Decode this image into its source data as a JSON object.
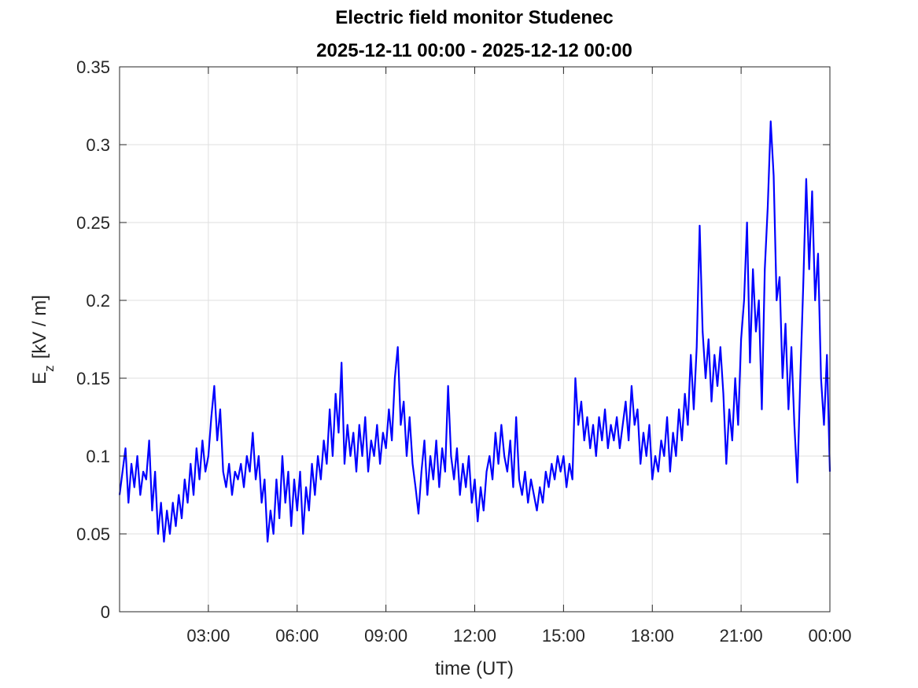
{
  "chart_data": {
    "type": "line",
    "title": "Electric field monitor Studenec",
    "subtitle": "2025-12-11 00:00 - 2025-12-12 00:00",
    "xlabel": "time (UT)",
    "ylabel": "E",
    "ylabel_subscript": "z",
    "ylabel_unit": "[kV / m]",
    "grid": true,
    "xlim": [
      0,
      24
    ],
    "xticks": [
      {
        "value": 3,
        "label": "03:00"
      },
      {
        "value": 6,
        "label": "06:00"
      },
      {
        "value": 9,
        "label": "09:00"
      },
      {
        "value": 12,
        "label": "12:00"
      },
      {
        "value": 15,
        "label": "15:00"
      },
      {
        "value": 18,
        "label": "18:00"
      },
      {
        "value": 21,
        "label": "21:00"
      },
      {
        "value": 24,
        "label": "00:00"
      }
    ],
    "ylim": [
      0,
      0.35
    ],
    "yticks": [
      0,
      0.05,
      0.1,
      0.15,
      0.2,
      0.25,
      0.3,
      0.35
    ],
    "x": [
      0,
      0.1,
      0.2,
      0.3,
      0.4,
      0.5,
      0.6,
      0.7,
      0.8,
      0.9,
      1,
      1.1,
      1.2,
      1.3,
      1.4,
      1.5,
      1.6,
      1.7,
      1.8,
      1.9,
      2,
      2.1,
      2.2,
      2.3,
      2.4,
      2.5,
      2.6,
      2.7,
      2.8,
      2.9,
      3,
      3.1,
      3.2,
      3.3,
      3.4,
      3.5,
      3.6,
      3.7,
      3.8,
      3.9,
      4,
      4.1,
      4.2,
      4.3,
      4.4,
      4.5,
      4.6,
      4.7,
      4.8,
      4.9,
      5,
      5.1,
      5.2,
      5.3,
      5.4,
      5.5,
      5.6,
      5.7,
      5.8,
      5.9,
      6,
      6.1,
      6.2,
      6.3,
      6.4,
      6.5,
      6.6,
      6.7,
      6.8,
      6.9,
      7,
      7.1,
      7.2,
      7.3,
      7.4,
      7.5,
      7.6,
      7.7,
      7.8,
      7.9,
      8,
      8.1,
      8.2,
      8.3,
      8.4,
      8.5,
      8.6,
      8.7,
      8.8,
      8.9,
      9,
      9.1,
      9.2,
      9.3,
      9.4,
      9.5,
      9.6,
      9.7,
      9.8,
      9.9,
      10,
      10.1,
      10.2,
      10.3,
      10.4,
      10.5,
      10.6,
      10.7,
      10.8,
      10.9,
      11,
      11.1,
      11.2,
      11.3,
      11.4,
      11.5,
      11.6,
      11.7,
      11.8,
      11.9,
      12,
      12.1,
      12.2,
      12.3,
      12.4,
      12.5,
      12.6,
      12.7,
      12.8,
      12.9,
      13,
      13.1,
      13.2,
      13.3,
      13.4,
      13.5,
      13.6,
      13.7,
      13.8,
      13.9,
      14,
      14.1,
      14.2,
      14.3,
      14.4,
      14.5,
      14.6,
      14.7,
      14.8,
      14.9,
      15,
      15.1,
      15.2,
      15.3,
      15.4,
      15.5,
      15.6,
      15.7,
      15.8,
      15.9,
      16,
      16.1,
      16.2,
      16.3,
      16.4,
      16.5,
      16.6,
      16.7,
      16.8,
      16.9,
      17,
      17.1,
      17.2,
      17.3,
      17.4,
      17.5,
      17.6,
      17.7,
      17.8,
      17.9,
      18,
      18.1,
      18.2,
      18.3,
      18.4,
      18.5,
      18.6,
      18.7,
      18.8,
      18.9,
      19,
      19.1,
      19.2,
      19.3,
      19.4,
      19.5,
      19.6,
      19.7,
      19.8,
      19.9,
      20,
      20.1,
      20.2,
      20.3,
      20.4,
      20.5,
      20.6,
      20.7,
      20.8,
      20.9,
      21,
      21.1,
      21.2,
      21.3,
      21.4,
      21.5,
      21.6,
      21.7,
      21.8,
      21.9,
      22,
      22.1,
      22.2,
      22.3,
      22.4,
      22.5,
      22.6,
      22.7,
      22.8,
      22.9,
      23,
      23.1,
      23.2,
      23.3,
      23.4,
      23.5,
      23.6,
      23.7,
      23.8,
      23.9,
      24
    ],
    "series": [
      {
        "color": "#0000ff",
        "values": [
          0.075,
          0.09,
          0.105,
          0.07,
          0.095,
          0.08,
          0.1,
          0.075,
          0.09,
          0.085,
          0.11,
          0.065,
          0.09,
          0.05,
          0.07,
          0.045,
          0.065,
          0.05,
          0.07,
          0.055,
          0.075,
          0.06,
          0.085,
          0.07,
          0.095,
          0.075,
          0.105,
          0.085,
          0.11,
          0.09,
          0.1,
          0.125,
          0.145,
          0.11,
          0.13,
          0.09,
          0.08,
          0.095,
          0.075,
          0.09,
          0.085,
          0.095,
          0.08,
          0.1,
          0.09,
          0.115,
          0.085,
          0.1,
          0.07,
          0.085,
          0.045,
          0.065,
          0.05,
          0.085,
          0.06,
          0.1,
          0.07,
          0.09,
          0.055,
          0.085,
          0.065,
          0.09,
          0.05,
          0.08,
          0.065,
          0.095,
          0.075,
          0.1,
          0.085,
          0.11,
          0.095,
          0.13,
          0.1,
          0.14,
          0.115,
          0.16,
          0.095,
          0.12,
          0.1,
          0.115,
          0.09,
          0.12,
          0.1,
          0.125,
          0.09,
          0.11,
          0.1,
          0.12,
          0.095,
          0.115,
          0.105,
          0.13,
          0.11,
          0.15,
          0.17,
          0.12,
          0.135,
          0.1,
          0.125,
          0.095,
          0.08,
          0.063,
          0.09,
          0.11,
          0.075,
          0.1,
          0.085,
          0.11,
          0.08,
          0.105,
          0.09,
          0.145,
          0.1,
          0.085,
          0.105,
          0.075,
          0.095,
          0.08,
          0.1,
          0.07,
          0.085,
          0.058,
          0.08,
          0.065,
          0.09,
          0.1,
          0.085,
          0.115,
          0.095,
          0.12,
          0.1,
          0.09,
          0.11,
          0.08,
          0.125,
          0.085,
          0.075,
          0.09,
          0.07,
          0.085,
          0.075,
          0.065,
          0.08,
          0.07,
          0.09,
          0.08,
          0.095,
          0.085,
          0.1,
          0.09,
          0.1,
          0.08,
          0.095,
          0.085,
          0.15,
          0.12,
          0.135,
          0.11,
          0.125,
          0.105,
          0.12,
          0.1,
          0.125,
          0.11,
          0.13,
          0.105,
          0.12,
          0.11,
          0.125,
          0.105,
          0.12,
          0.135,
          0.11,
          0.145,
          0.12,
          0.13,
          0.095,
          0.115,
          0.1,
          0.12,
          0.085,
          0.1,
          0.09,
          0.11,
          0.1,
          0.125,
          0.09,
          0.115,
          0.1,
          0.13,
          0.11,
          0.14,
          0.12,
          0.165,
          0.13,
          0.17,
          0.248,
          0.18,
          0.15,
          0.175,
          0.135,
          0.165,
          0.145,
          0.17,
          0.14,
          0.095,
          0.13,
          0.11,
          0.15,
          0.12,
          0.175,
          0.2,
          0.25,
          0.16,
          0.22,
          0.18,
          0.2,
          0.13,
          0.22,
          0.26,
          0.315,
          0.28,
          0.2,
          0.215,
          0.15,
          0.185,
          0.13,
          0.17,
          0.12,
          0.083,
          0.15,
          0.21,
          0.278,
          0.22,
          0.27,
          0.2,
          0.23,
          0.15,
          0.12,
          0.165,
          0.09
        ]
      }
    ]
  }
}
